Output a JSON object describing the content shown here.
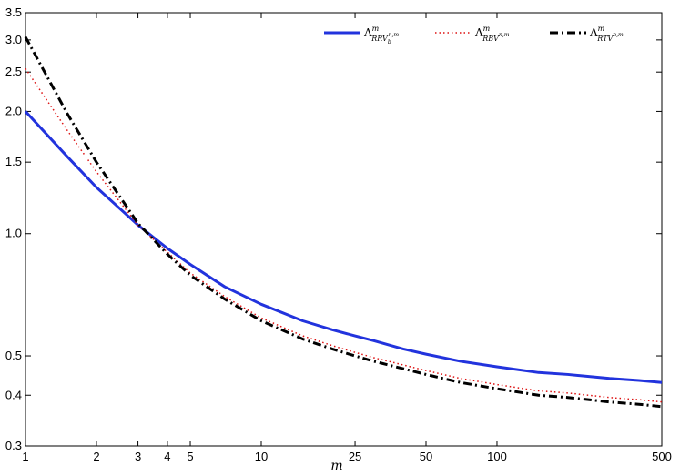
{
  "chart_data": {
    "type": "line",
    "xlabel": "m",
    "ylabel": "",
    "xscale": "log",
    "yscale": "log",
    "xlim": [
      1,
      500
    ],
    "ylim": [
      0.3,
      3.5
    ],
    "grid": false,
    "legend_position": "top-right",
    "x_ticks": [
      {
        "value": 1,
        "label": "1"
      },
      {
        "value": 2,
        "label": "2"
      },
      {
        "value": 3,
        "label": "3"
      },
      {
        "value": 4,
        "label": "4"
      },
      {
        "value": 5,
        "label": "5"
      },
      {
        "value": 10,
        "label": "10"
      },
      {
        "value": 25,
        "label": "25"
      },
      {
        "value": 50,
        "label": "50"
      },
      {
        "value": 100,
        "label": "100"
      },
      {
        "value": 500,
        "label": "500"
      }
    ],
    "y_ticks": [
      {
        "value": 0.3,
        "label": "0.3"
      },
      {
        "value": 0.4,
        "label": "0.4"
      },
      {
        "value": 0.5,
        "label": "0.5"
      },
      {
        "value": 1.0,
        "label": "1.0"
      },
      {
        "value": 1.5,
        "label": "1.5"
      },
      {
        "value": 2.0,
        "label": "2.0"
      },
      {
        "value": 2.5,
        "label": "2.5"
      },
      {
        "value": 3.0,
        "label": "3.0"
      },
      {
        "value": 3.5,
        "label": "3.5"
      }
    ],
    "series": [
      {
        "name": "Λ^m_{RRV_b^{n,m}}",
        "legend": {
          "base": "Λ",
          "sup": "m",
          "sub": "RRV",
          "subsub": "b",
          "subsup": "n,m"
        },
        "color": "#2233dd",
        "style": "solid",
        "x": [
          1,
          1.5,
          2,
          3,
          4,
          5,
          7,
          10,
          15,
          20,
          25,
          30,
          40,
          50,
          70,
          100,
          150,
          200,
          300,
          400,
          500
        ],
        "y": [
          2.0,
          1.55,
          1.3,
          1.05,
          0.92,
          0.84,
          0.74,
          0.67,
          0.61,
          0.58,
          0.56,
          0.545,
          0.52,
          0.505,
          0.485,
          0.47,
          0.455,
          0.45,
          0.44,
          0.435,
          0.43
        ]
      },
      {
        "name": "Λ^m_{RBV^{n,m}}",
        "legend": {
          "base": "Λ",
          "sup": "m",
          "sub": "RBV",
          "subsub": "",
          "subsup": "n,m"
        },
        "color": "#dd1111",
        "style": "dotted",
        "x": [
          1,
          1.5,
          2,
          3,
          4,
          5,
          7,
          10,
          15,
          20,
          25,
          30,
          40,
          50,
          70,
          100,
          150,
          200,
          300,
          400,
          500
        ],
        "y": [
          2.55,
          1.8,
          1.42,
          1.05,
          0.9,
          0.8,
          0.7,
          0.62,
          0.56,
          0.53,
          0.51,
          0.495,
          0.475,
          0.46,
          0.44,
          0.425,
          0.41,
          0.405,
          0.395,
          0.39,
          0.385
        ]
      },
      {
        "name": "Λ^m_{RTV^{n,m}}",
        "legend": {
          "base": "Λ",
          "sup": "m",
          "sub": "RTV",
          "subsub": "",
          "subsup": "n,m"
        },
        "color": "#000000",
        "style": "dashdot",
        "x": [
          1,
          1.5,
          2,
          3,
          4,
          5,
          7,
          10,
          15,
          20,
          25,
          30,
          40,
          50,
          70,
          100,
          150,
          200,
          300,
          400,
          500
        ],
        "y": [
          3.05,
          1.98,
          1.5,
          1.06,
          0.89,
          0.79,
          0.69,
          0.61,
          0.55,
          0.52,
          0.5,
          0.485,
          0.465,
          0.45,
          0.43,
          0.415,
          0.4,
          0.395,
          0.385,
          0.38,
          0.375
        ]
      }
    ]
  }
}
